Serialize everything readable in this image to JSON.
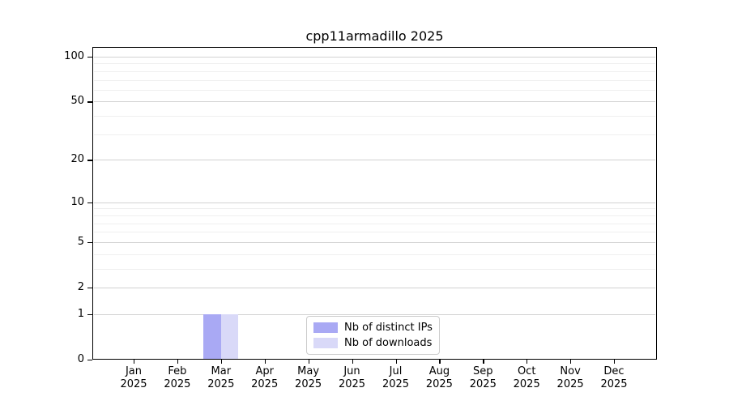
{
  "chart_data": {
    "type": "bar",
    "title": "cpp11armadillo 2025",
    "categories": [
      "Jan 2025",
      "Feb 2025",
      "Mar 2025",
      "Apr 2025",
      "May 2025",
      "Jun 2025",
      "Jul 2025",
      "Aug 2025",
      "Sep 2025",
      "Oct 2025",
      "Nov 2025",
      "Dec 2025"
    ],
    "series": [
      {
        "name": "Nb of distinct IPs",
        "color": "#a9a9f4",
        "values": [
          0,
          0,
          1,
          0,
          0,
          0,
          0,
          0,
          0,
          0,
          0,
          0
        ]
      },
      {
        "name": "Nb of downloads",
        "color": "#d9d9f8",
        "values": [
          0,
          0,
          1,
          0,
          0,
          0,
          0,
          0,
          0,
          0,
          0,
          0
        ]
      }
    ],
    "yscale": "log1p",
    "ylim": [
      0,
      116
    ],
    "y_major_ticks": [
      0,
      1,
      2,
      5,
      10,
      20,
      50,
      100
    ],
    "y_minor_ticks": [
      3,
      4,
      6,
      7,
      8,
      9,
      30,
      40,
      60,
      70,
      80,
      90
    ],
    "grid": "horizontal-major-and-minor",
    "legend_position": "lower center"
  },
  "legend": {
    "items": [
      {
        "label": "Nb of distinct IPs",
        "color": "#a9a9f4"
      },
      {
        "label": "Nb of downloads",
        "color": "#d9d9f8"
      }
    ]
  },
  "colors": {
    "background": "#ffffff",
    "spine": "#000000",
    "text": "#000000",
    "major_grid": "#d2d2d2",
    "minor_grid": "#efefef"
  }
}
